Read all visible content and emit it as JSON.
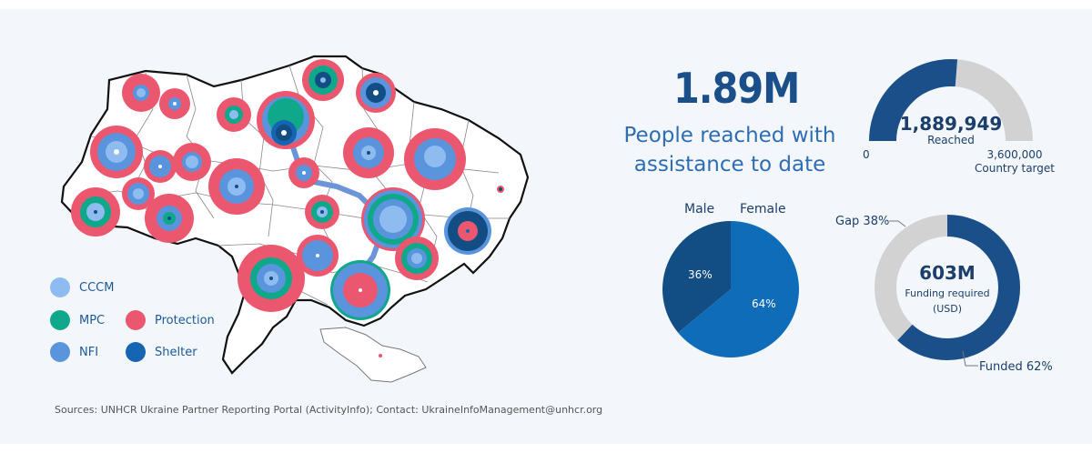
{
  "headline": {
    "value": "1.89M",
    "line1": "People reached with",
    "line2": "assistance to date"
  },
  "reached_gauge": {
    "value_label": "1,889,949",
    "value_caption": "Reached",
    "min_label": "0",
    "max_label": "3,600,000",
    "max_caption": "Country target",
    "fraction": 0.525,
    "colors": {
      "filled": "#1b4f8a",
      "remaining": "#d2d2d2"
    }
  },
  "gender_pie": {
    "male_label": "Male",
    "female_label": "Female",
    "male_pct_label": "36%",
    "female_pct_label": "64%",
    "male_pct": 36,
    "female_pct": 64,
    "colors": {
      "male": "#124d84",
      "female": "#0f6cb8"
    }
  },
  "funding_donut": {
    "value_label": "603M",
    "caption_line1": "Funding required",
    "caption_line2": "(USD)",
    "gap_label": "Gap 38%",
    "funded_label": "Funded 62%",
    "funded_pct": 62,
    "colors": {
      "funded": "#1b4f8a",
      "gap": "#d2d2d2"
    }
  },
  "legend": [
    {
      "label": "CCCM",
      "color": "#8ebcf0"
    },
    {
      "label": "MPC",
      "color": "#0fa88a"
    },
    {
      "label": "Protection",
      "color": "#ec5770"
    },
    {
      "label": "NFI",
      "color": "#5a94dd"
    },
    {
      "label": "Shelter",
      "color": "#1565b3"
    }
  ],
  "sources": "Sources: UNHCR Ukraine Partner Reporting Portal (ActivityInfo); Contact: UkraineInfoManagement@unhcr.org"
}
